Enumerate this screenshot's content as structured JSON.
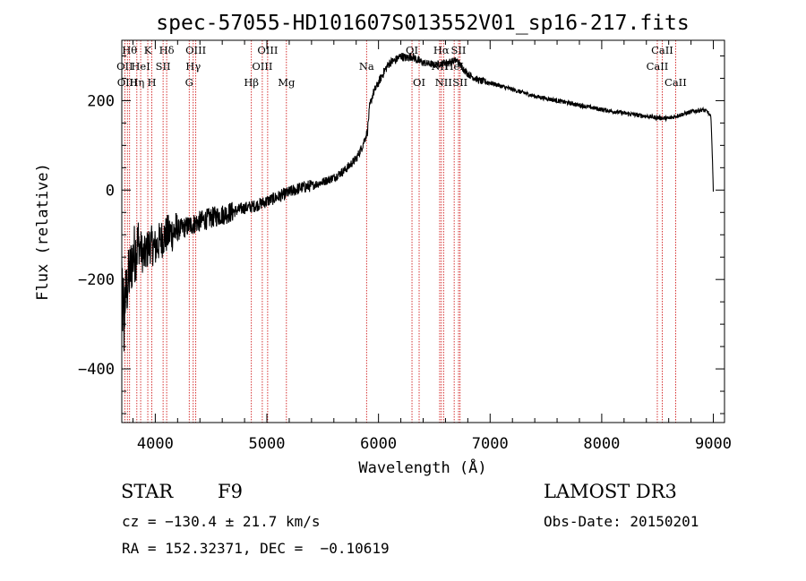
{
  "chart_data": {
    "type": "line",
    "title": "spec-57055-HD101607S013552V01_sp16-217.fits",
    "xlabel": "Wavelength (Å)",
    "ylabel": "Flux (relative)",
    "xlim": [
      3700,
      9100
    ],
    "ylim": [
      -520,
      335
    ],
    "xticks": [
      4000,
      5000,
      6000,
      7000,
      8000,
      9000
    ],
    "yticks": [
      -400,
      -200,
      0,
      200
    ],
    "spectrum_anchors": [
      [
        3700,
        -180
      ],
      [
        3720,
        -260
      ],
      [
        3760,
        -200
      ],
      [
        3800,
        -150
      ],
      [
        3850,
        -120
      ],
      [
        3900,
        -150
      ],
      [
        3950,
        -120
      ],
      [
        4000,
        -130
      ],
      [
        4050,
        -110
      ],
      [
        4100,
        -100
      ],
      [
        4200,
        -90
      ],
      [
        4300,
        -80
      ],
      [
        4400,
        -70
      ],
      [
        4500,
        -62
      ],
      [
        4600,
        -55
      ],
      [
        4700,
        -48
      ],
      [
        4800,
        -40
      ],
      [
        4900,
        -35
      ],
      [
        5000,
        -25
      ],
      [
        5100,
        -15
      ],
      [
        5200,
        -5
      ],
      [
        5300,
        5
      ],
      [
        5400,
        10
      ],
      [
        5500,
        18
      ],
      [
        5600,
        28
      ],
      [
        5700,
        45
      ],
      [
        5800,
        70
      ],
      [
        5850,
        95
      ],
      [
        5900,
        130
      ],
      [
        5920,
        185
      ],
      [
        5950,
        215
      ],
      [
        6000,
        240
      ],
      [
        6050,
        265
      ],
      [
        6100,
        285
      ],
      [
        6150,
        290
      ],
      [
        6200,
        300
      ],
      [
        6250,
        295
      ],
      [
        6300,
        300
      ],
      [
        6350,
        290
      ],
      [
        6400,
        285
      ],
      [
        6500,
        280
      ],
      [
        6600,
        285
      ],
      [
        6700,
        290
      ],
      [
        6800,
        260
      ],
      [
        6900,
        245
      ],
      [
        7000,
        240
      ],
      [
        7200,
        225
      ],
      [
        7400,
        210
      ],
      [
        7600,
        200
      ],
      [
        7800,
        190
      ],
      [
        8000,
        180
      ],
      [
        8200,
        172
      ],
      [
        8400,
        165
      ],
      [
        8500,
        162
      ],
      [
        8600,
        160
      ],
      [
        8700,
        168
      ],
      [
        8800,
        175
      ],
      [
        8900,
        180
      ],
      [
        8950,
        175
      ],
      [
        8980,
        160
      ],
      [
        9000,
        0
      ]
    ],
    "lines": [
      {
        "w": 3727,
        "label": "OII",
        "row": 1
      },
      {
        "w": 3750,
        "label": "OIII",
        "row": 2
      },
      {
        "w": 3770,
        "label": "Hθ",
        "row": 0
      },
      {
        "w": 3835,
        "label": "Hη",
        "row": 2
      },
      {
        "w": 3869,
        "label": "HeI",
        "row": 1
      },
      {
        "w": 3933,
        "label": "K",
        "row": 0
      },
      {
        "w": 3969,
        "label": "H",
        "row": 2
      },
      {
        "w": 4070,
        "label": "SII",
        "row": 1
      },
      {
        "w": 4102,
        "label": "Hδ",
        "row": 0
      },
      {
        "w": 4304,
        "label": "G",
        "row": 2
      },
      {
        "w": 4340,
        "label": "Hγ",
        "row": 1
      },
      {
        "w": 4363,
        "label": "OIII",
        "row": 0
      },
      {
        "w": 4861,
        "label": "Hβ",
        "row": 2
      },
      {
        "w": 4959,
        "label": "OIII",
        "row": 1
      },
      {
        "w": 5007,
        "label": "OIII",
        "row": 0
      },
      {
        "w": 5175,
        "label": "Mg",
        "row": 2
      },
      {
        "w": 5893,
        "label": "Na",
        "row": 1
      },
      {
        "w": 6300,
        "label": "OI",
        "row": 0
      },
      {
        "w": 6364,
        "label": "OI",
        "row": 2
      },
      {
        "w": 6548,
        "label": "NII",
        "row": 1
      },
      {
        "w": 6563,
        "label": "Hα",
        "row": 0
      },
      {
        "w": 6583,
        "label": "NII",
        "row": 2
      },
      {
        "w": 6678,
        "label": "HeI",
        "row": 1
      },
      {
        "w": 6717,
        "label": "SII",
        "row": 0
      },
      {
        "w": 6731,
        "label": "SII",
        "row": 2
      },
      {
        "w": 8498,
        "label": "CaII",
        "row": 1
      },
      {
        "w": 8542,
        "label": "CaII",
        "row": 0
      },
      {
        "w": 8662,
        "label": "CaII",
        "row": 2
      }
    ],
    "colors": {
      "line_marker": "#cc0000",
      "spectrum": "#000000",
      "axes": "#000000"
    }
  },
  "info": {
    "object_type": "STAR",
    "subclass": "F9",
    "survey": "LAMOST DR3",
    "cz": "cz = −130.4 ± 21.7 km/s",
    "obs_date": "Obs-Date: 20150201",
    "coords": "RA = 152.32371, DEC =  −0.10619"
  }
}
